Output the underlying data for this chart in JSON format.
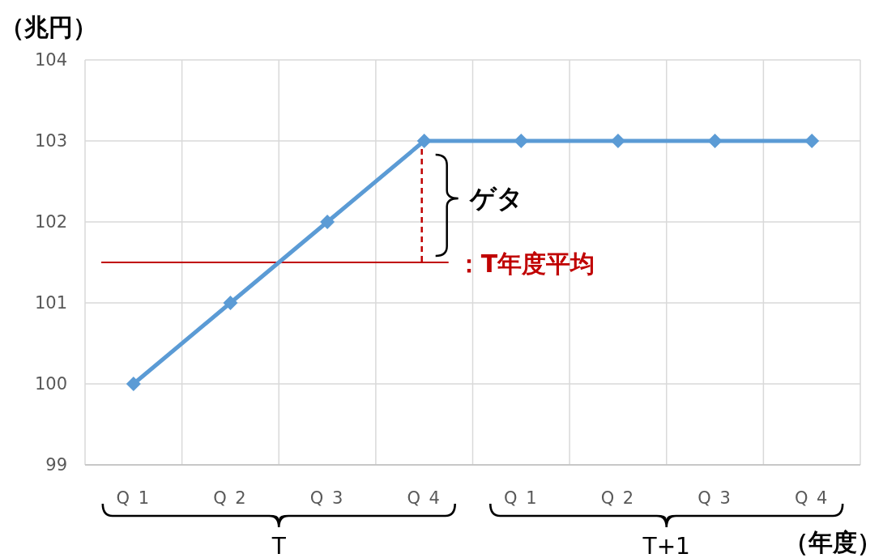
{
  "chart_data": {
    "type": "line",
    "ylabel": "（兆円）",
    "xlabel": "（年度）",
    "categories": [
      "Q 1",
      "Q 2",
      "Q 3",
      "Q 4",
      "Q 1",
      "Q 2",
      "Q 3",
      "Q 4"
    ],
    "series": [
      {
        "color": "#5b9bd5",
        "values": [
          100,
          101,
          102,
          103,
          103,
          103,
          103,
          103
        ]
      }
    ],
    "ylim": [
      99,
      104
    ],
    "yticks": [
      99,
      100,
      101,
      102,
      103,
      104
    ],
    "grid": true,
    "marker": "diamond",
    "ref_lines": [
      {
        "axis": "y",
        "value": 101.5,
        "label": "：T年度平均",
        "color": "#c00000"
      }
    ],
    "annotations": [
      "ゲタ",
      "T",
      "T+1"
    ]
  }
}
